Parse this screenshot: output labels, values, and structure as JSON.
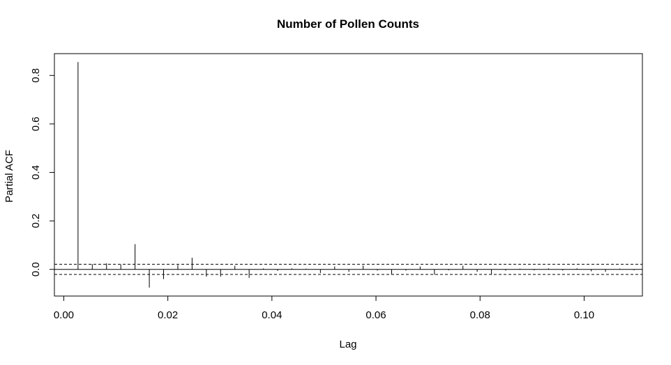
{
  "chart_data": {
    "type": "bar",
    "title": "Number of Pollen Counts",
    "xlabel": "Lag",
    "ylabel": "Partial ACF",
    "xlim": [
      -0.0018,
      0.1112
    ],
    "ylim": [
      -0.11,
      0.89
    ],
    "xticks": [
      0.0,
      0.02,
      0.04,
      0.06,
      0.08,
      0.1
    ],
    "xtick_labels": [
      "0.00",
      "0.02",
      "0.04",
      "0.06",
      "0.08",
      "0.10"
    ],
    "yticks": [
      0.0,
      0.2,
      0.4,
      0.6,
      0.8
    ],
    "ytick_labels": [
      "0.0",
      "0.2",
      "0.4",
      "0.6",
      "0.8"
    ],
    "confidence_bound": 0.021,
    "grid": false,
    "series": [
      {
        "x": [
          0.00274,
          0.00548,
          0.00822,
          0.01096,
          0.0137,
          0.01644,
          0.01918,
          0.02192,
          0.02466,
          0.0274,
          0.03014,
          0.03288,
          0.03562,
          0.03836,
          0.0411,
          0.04384,
          0.04658,
          0.04932,
          0.05206,
          0.05479,
          0.05753,
          0.06027,
          0.06301,
          0.06575,
          0.06849,
          0.07123,
          0.07397,
          0.07671,
          0.07945,
          0.08219,
          0.08493,
          0.08767,
          0.09041,
          0.09315,
          0.09589,
          0.09863,
          0.10137,
          0.10411,
          0.10685,
          0.10959
        ],
        "values": [
          0.855,
          0.022,
          0.025,
          0.02,
          0.104,
          -0.075,
          -0.04,
          0.018,
          0.048,
          -0.03,
          -0.03,
          0.015,
          -0.035,
          0.004,
          -0.006,
          0.004,
          0.003,
          -0.015,
          0.012,
          -0.01,
          0.016,
          -0.005,
          -0.02,
          -0.005,
          0.012,
          -0.022,
          -0.004,
          0.015,
          -0.01,
          -0.022,
          -0.005,
          0.003,
          -0.004,
          0.004,
          -0.005,
          0.004,
          -0.008,
          -0.01,
          0.003,
          -0.004
        ]
      }
    ]
  }
}
